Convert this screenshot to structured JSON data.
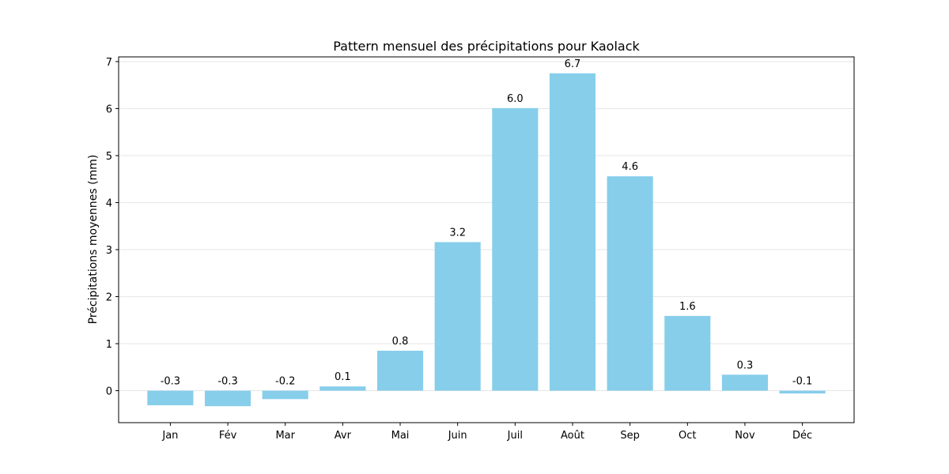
{
  "chart_data": {
    "type": "bar",
    "title": "Pattern mensuel des précipitations pour Kaolack",
    "xlabel": "",
    "ylabel": "Précipitations moyennes (mm)",
    "categories": [
      "Jan",
      "Fév",
      "Mar",
      "Avr",
      "Mai",
      "Juin",
      "Juil",
      "Août",
      "Sep",
      "Oct",
      "Nov",
      "Déc"
    ],
    "values": [
      -0.31,
      -0.33,
      -0.18,
      0.09,
      0.85,
      3.16,
      6.01,
      6.75,
      4.56,
      1.59,
      0.34,
      -0.06
    ],
    "data_labels": [
      "-0.3",
      "-0.3",
      "-0.2",
      "0.1",
      "0.8",
      "3.2",
      "6.0",
      "6.7",
      "4.6",
      "1.6",
      "0.3",
      "-0.1"
    ],
    "ylim": [
      -0.68,
      7.1
    ],
    "yticks": [
      0,
      1,
      2,
      3,
      4,
      5,
      6,
      7
    ],
    "ytick_labels": [
      "0",
      "1",
      "2",
      "3",
      "4",
      "5",
      "6",
      "7"
    ],
    "grid": "y",
    "legend": "none",
    "bar_color": "#87CEEB"
  }
}
